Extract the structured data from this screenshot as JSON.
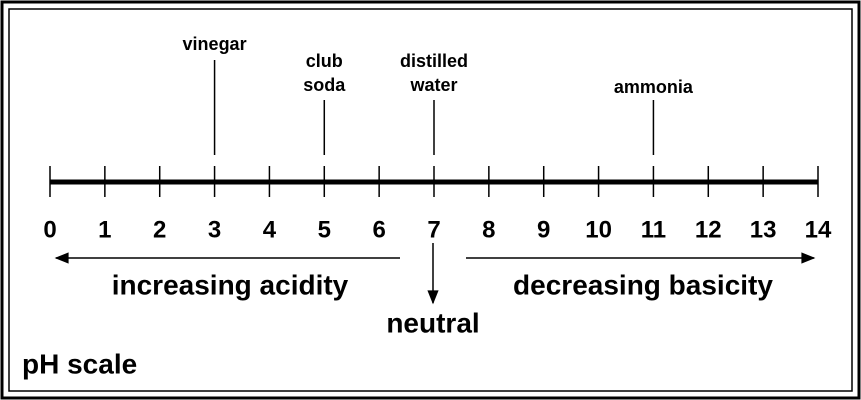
{
  "title": "pH scale",
  "scale": {
    "min": 0,
    "max": 14,
    "ticks": [
      0,
      1,
      2,
      3,
      4,
      5,
      6,
      7,
      8,
      9,
      10,
      11,
      12,
      13,
      14
    ]
  },
  "markers": [
    {
      "lines": [
        "vinegar"
      ],
      "ph": 3
    },
    {
      "lines": [
        "club",
        "soda"
      ],
      "ph": 5
    },
    {
      "lines": [
        "distilled",
        "water"
      ],
      "ph": 7
    },
    {
      "lines": [
        "ammonia"
      ],
      "ph": 11
    }
  ],
  "left_arrow": "increasing acidity",
  "right_arrow": "decreasing basicity",
  "neutral": "neutral"
}
